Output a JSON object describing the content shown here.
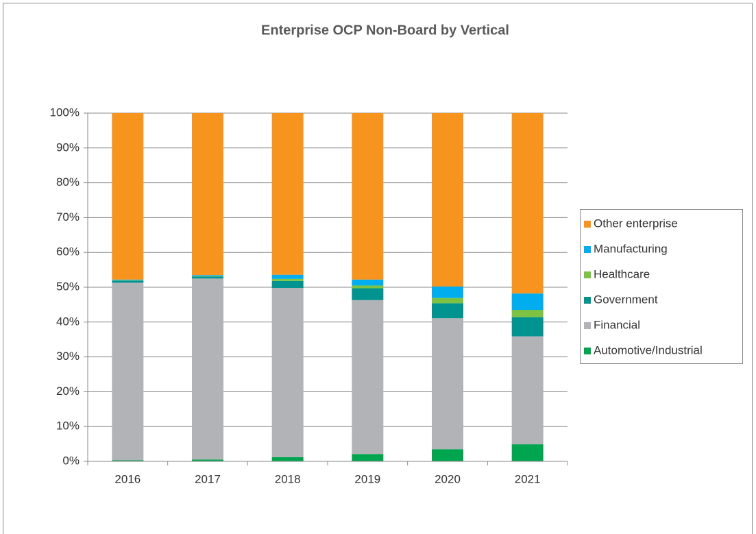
{
  "chart_data": {
    "type": "bar",
    "stacked": true,
    "title": "Enterprise OCP Non-Board by Vertical",
    "categories": [
      "2016",
      "2017",
      "2018",
      "2019",
      "2020",
      "2021"
    ],
    "series": [
      {
        "name": "Automotive/Industrial",
        "color": "#00a64f",
        "values": [
          0.3,
          0.5,
          1.2,
          2.1,
          3.5,
          4.9
        ]
      },
      {
        "name": "Financial",
        "color": "#b1b3b6",
        "values": [
          51.0,
          52.0,
          48.6,
          44.2,
          37.6,
          31.0
        ]
      },
      {
        "name": "Government",
        "color": "#00938f",
        "values": [
          0.6,
          0.6,
          2.0,
          3.4,
          4.3,
          5.5
        ]
      },
      {
        "name": "Healthcare",
        "color": "#7dc242",
        "values": [
          0.1,
          0.1,
          0.6,
          0.8,
          1.5,
          2.1
        ]
      },
      {
        "name": "Manufacturing",
        "color": "#00aeef",
        "values": [
          0.2,
          0.3,
          1.2,
          1.7,
          3.3,
          4.7
        ]
      },
      {
        "name": "Other enterprise",
        "color": "#f7941d",
        "values": [
          47.8,
          46.5,
          46.4,
          47.8,
          49.8,
          51.8
        ]
      }
    ],
    "ylim": [
      0,
      100
    ],
    "yticks": [
      {
        "value": 0,
        "label": "0%"
      },
      {
        "value": 10,
        "label": "10%"
      },
      {
        "value": 20,
        "label": "20%"
      },
      {
        "value": 30,
        "label": "30%"
      },
      {
        "value": 40,
        "label": "40%"
      },
      {
        "value": 50,
        "label": "50%"
      },
      {
        "value": 60,
        "label": "60%"
      },
      {
        "value": 70,
        "label": "70%"
      },
      {
        "value": 80,
        "label": "80%"
      },
      {
        "value": 90,
        "label": "90%"
      },
      {
        "value": 100,
        "label": "100%"
      }
    ],
    "grid": true,
    "legend": "right"
  }
}
